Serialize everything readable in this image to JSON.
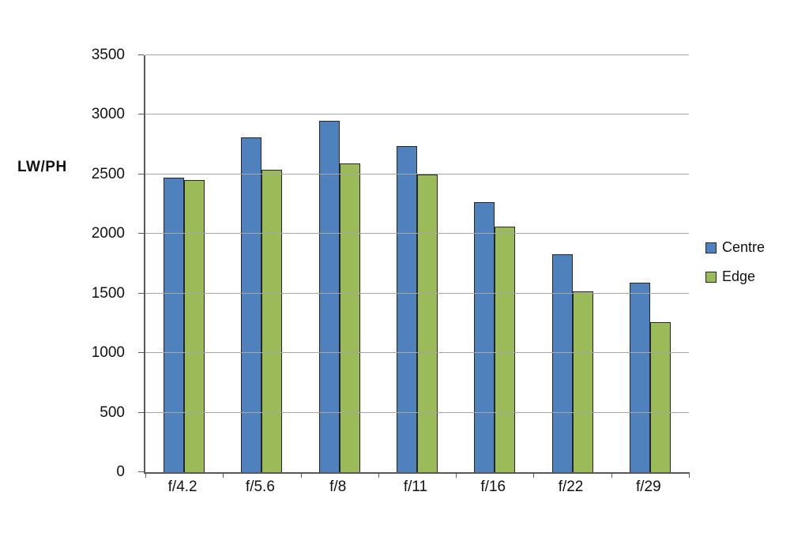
{
  "chart_data": {
    "type": "bar",
    "title": "",
    "ylabel": "LW/PH",
    "xlabel": "",
    "categories": [
      "f/4.2",
      "f/5.6",
      "f/8",
      "f/11",
      "f/16",
      "f/22",
      "f/29"
    ],
    "series": [
      {
        "name": "Centre",
        "color": "#4f81bd",
        "values": [
          2470,
          2810,
          2950,
          2740,
          2270,
          1830,
          1590
        ]
      },
      {
        "name": "Edge",
        "color": "#9bbb59",
        "values": [
          2450,
          2540,
          2590,
          2500,
          2060,
          1520,
          1260
        ]
      }
    ],
    "ylim": [
      0,
      3500
    ],
    "ytick_step": 500,
    "grid": true,
    "legend_position": "right"
  }
}
